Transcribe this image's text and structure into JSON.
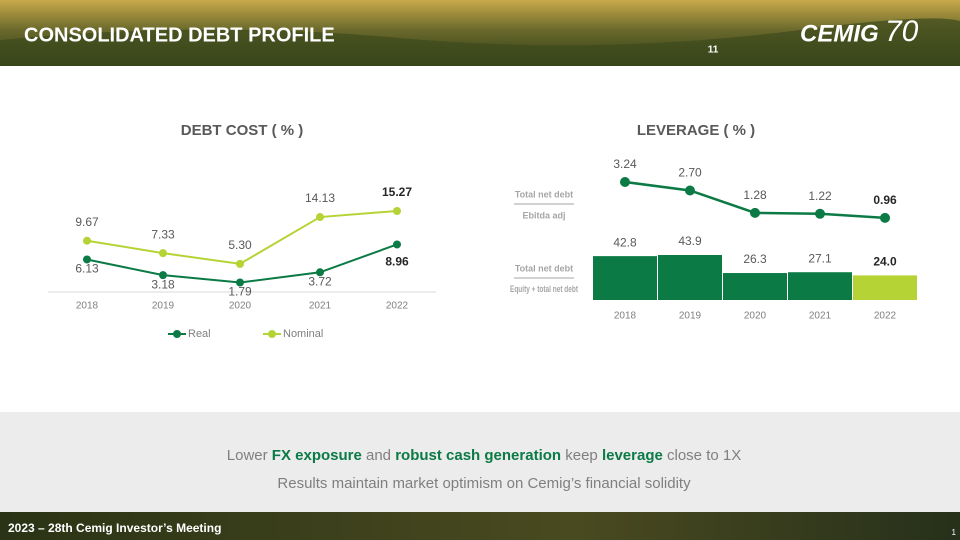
{
  "header": {
    "title": "CONSOLIDATED DEBT PROFILE",
    "page_number": "11",
    "logo": "CEMIG",
    "logo_badge": "70"
  },
  "chart_data": [
    {
      "type": "line",
      "title": "DEBT COST ( % )",
      "categories": [
        "2018",
        "2019",
        "2020",
        "2021",
        "2022"
      ],
      "series": [
        {
          "name": "Real",
          "color": "#0b7a45",
          "values": [
            6.13,
            3.18,
            1.79,
            3.72,
            8.96
          ]
        },
        {
          "name": "Nominal",
          "color": "#b5d334",
          "values": [
            9.67,
            7.33,
            5.3,
            14.13,
            15.27
          ],
          "value_labels": [
            "9.67",
            "7.33",
            "5.30",
            "14.13",
            "15.27"
          ]
        }
      ],
      "legend": "bottom"
    },
    {
      "type": "bar_line",
      "title": "LEVERAGE ( % )",
      "categories": [
        "2018",
        "2019",
        "2020",
        "2021",
        "2022"
      ],
      "line": {
        "numerator": "Total net debt",
        "denominator": "Ebitda adj",
        "color": "#0b7a45",
        "values": [
          3.24,
          2.7,
          1.28,
          1.22,
          0.96
        ],
        "value_labels": [
          "3.24",
          "2.70",
          "1.28",
          "1.22",
          "0.96"
        ]
      },
      "bars": {
        "numerator": "Total net debt",
        "denominator": "Equity + total net debt",
        "colors": [
          "#0b7a45",
          "#0b7a45",
          "#0b7a45",
          "#0b7a45",
          "#b5d334"
        ],
        "values": [
          42.8,
          43.9,
          26.3,
          27.1,
          24.0
        ],
        "value_labels": [
          "42.8",
          "43.9",
          "26.3",
          "27.1",
          "24.0"
        ]
      }
    }
  ],
  "summary": {
    "line1": [
      {
        "text": "Lower ",
        "bold": false
      },
      {
        "text": "FX exposure",
        "bold": true
      },
      {
        "text": " and ",
        "bold": false
      },
      {
        "text": "robust cash generation",
        "bold": true
      },
      {
        "text": " keep ",
        "bold": false
      },
      {
        "text": "leverage",
        "bold": true
      },
      {
        "text": " close to 1X",
        "bold": false
      }
    ],
    "line2": "Results maintain market optimism on Cemig’s financial solidity"
  },
  "footer": {
    "text": "2023 – 28th Cemig Investor’s Meeting",
    "page": "1"
  }
}
